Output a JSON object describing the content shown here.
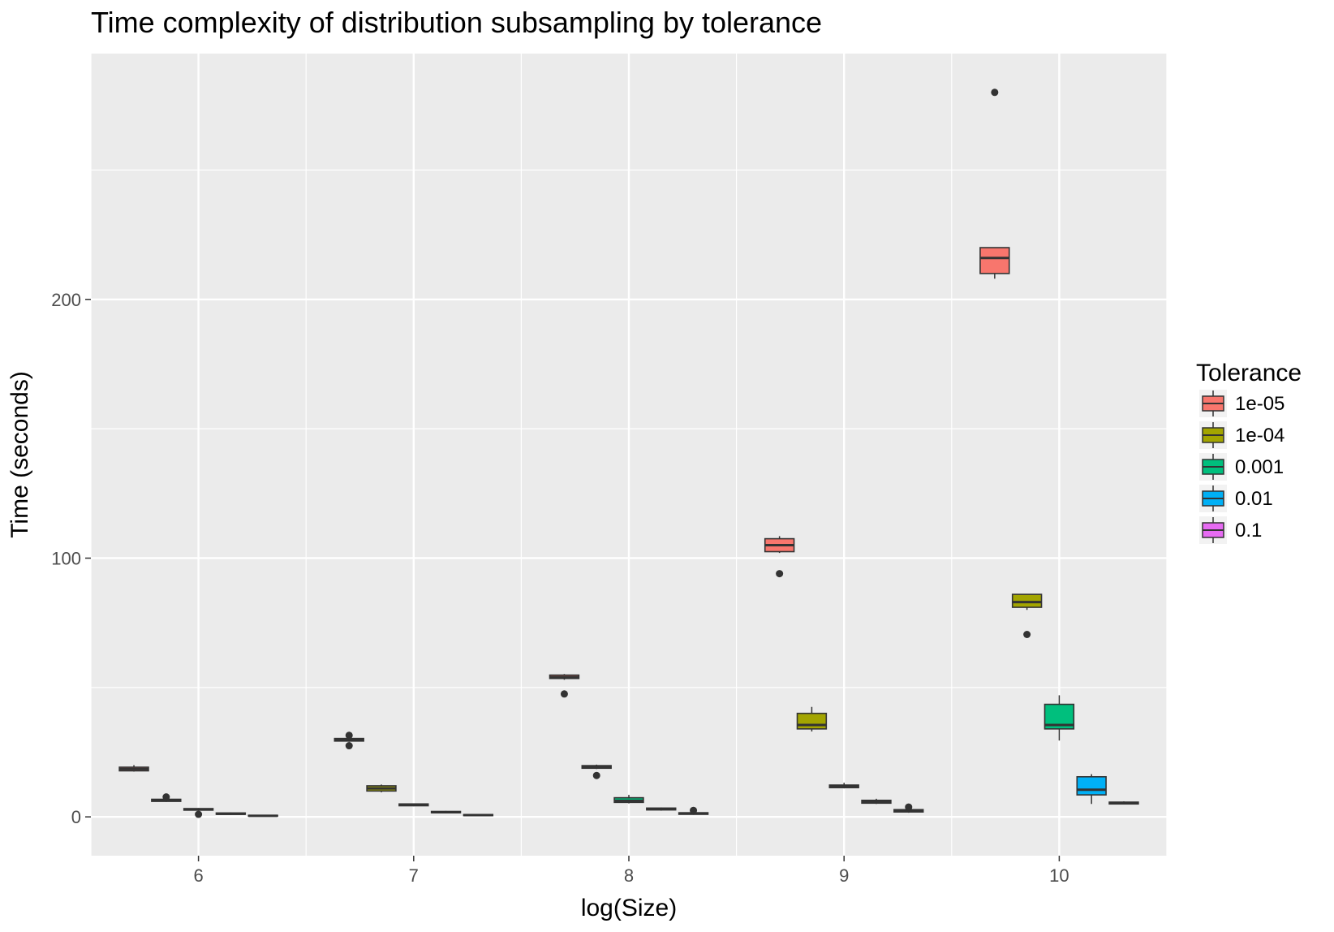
{
  "chart_data": {
    "type": "boxplot",
    "title": "Time complexity of distribution subsampling by tolerance",
    "xlabel": "log(Size)",
    "ylabel": "Time (seconds)",
    "categories": [
      "6",
      "7",
      "8",
      "9",
      "10"
    ],
    "xlim": [
      5.5,
      10.5
    ],
    "ylim": [
      -15,
      295
    ],
    "yticks": [
      0,
      100,
      200
    ],
    "grid": true,
    "legend": {
      "title": "Tolerance",
      "position": "right",
      "entries": [
        {
          "label": "1e-05",
          "color": "#F8766D"
        },
        {
          "label": "1e-04",
          "color": "#A3A500"
        },
        {
          "label": "0.001",
          "color": "#00BF7D"
        },
        {
          "label": "0.01",
          "color": "#00B0F6"
        },
        {
          "label": "0.1",
          "color": "#E76BF3"
        }
      ]
    },
    "series": [
      {
        "name": "1e-05",
        "color": "#F8766D",
        "boxes": [
          {
            "x": "6",
            "min": 17.5,
            "q1": 17.8,
            "median": 18.5,
            "q3": 19.2,
            "max": 20,
            "outliers": []
          },
          {
            "x": "7",
            "min": 29,
            "q1": 29.3,
            "median": 29.8,
            "q3": 30.3,
            "max": 30.6,
            "outliers": [
              31.5,
              27.5
            ]
          },
          {
            "x": "8",
            "min": 53,
            "q1": 53.5,
            "median": 54,
            "q3": 54.8,
            "max": 55.2,
            "outliers": [
              47.5
            ]
          },
          {
            "x": "9",
            "min": 102,
            "q1": 102.5,
            "median": 105,
            "q3": 107.5,
            "max": 108.5,
            "outliers": [
              94
            ]
          },
          {
            "x": "10",
            "min": 208,
            "q1": 210,
            "median": 216,
            "q3": 220,
            "max": 220,
            "outliers": [
              280
            ]
          }
        ]
      },
      {
        "name": "1e-04",
        "color": "#A3A500",
        "boxes": [
          {
            "x": "6",
            "min": 5.8,
            "q1": 6,
            "median": 6.4,
            "q3": 6.8,
            "max": 7.2,
            "outliers": [
              7.7
            ]
          },
          {
            "x": "7",
            "min": 9.5,
            "q1": 10,
            "median": 11,
            "q3": 12,
            "max": 12.5,
            "outliers": []
          },
          {
            "x": "8",
            "min": 18.5,
            "q1": 18.8,
            "median": 19.3,
            "q3": 19.8,
            "max": 20.2,
            "outliers": [
              16
            ]
          },
          {
            "x": "9",
            "min": 33,
            "q1": 34,
            "median": 35.5,
            "q3": 40,
            "max": 42.5,
            "outliers": []
          },
          {
            "x": "10",
            "min": 80,
            "q1": 81,
            "median": 83,
            "q3": 86,
            "max": 86,
            "outliers": [
              70.5
            ]
          }
        ]
      },
      {
        "name": "0.001",
        "color": "#00BF7D",
        "boxes": [
          {
            "x": "6",
            "min": 2.4,
            "q1": 2.6,
            "median": 2.9,
            "q3": 3.2,
            "max": 3.4,
            "outliers": [
              1
            ]
          },
          {
            "x": "7",
            "min": 4.1,
            "q1": 4.3,
            "median": 4.6,
            "q3": 5,
            "max": 5.2,
            "outliers": []
          },
          {
            "x": "8",
            "min": 5.2,
            "q1": 5.6,
            "median": 6.2,
            "q3": 7.4,
            "max": 8.5,
            "outliers": []
          },
          {
            "x": "9",
            "min": 11,
            "q1": 11.3,
            "median": 11.8,
            "q3": 12.3,
            "max": 13.2,
            "outliers": []
          },
          {
            "x": "10",
            "min": 29.5,
            "q1": 34,
            "median": 35.5,
            "q3": 43.5,
            "max": 47,
            "outliers": []
          }
        ]
      },
      {
        "name": "0.01",
        "color": "#00B0F6",
        "boxes": [
          {
            "x": "6",
            "min": 0.8,
            "q1": 1,
            "median": 1.2,
            "q3": 1.5,
            "max": 1.7,
            "outliers": []
          },
          {
            "x": "7",
            "min": 1.4,
            "q1": 1.6,
            "median": 1.8,
            "q3": 2.1,
            "max": 2.3,
            "outliers": []
          },
          {
            "x": "8",
            "min": 2.4,
            "q1": 2.7,
            "median": 3,
            "q3": 3.4,
            "max": 3.6,
            "outliers": []
          },
          {
            "x": "9",
            "min": 5,
            "q1": 5.3,
            "median": 5.8,
            "q3": 6.4,
            "max": 7,
            "outliers": []
          },
          {
            "x": "10",
            "min": 5,
            "q1": 8.5,
            "median": 10.5,
            "q3": 15.5,
            "max": 16.5,
            "outliers": []
          }
        ]
      },
      {
        "name": "0.1",
        "color": "#E76BF3",
        "boxes": [
          {
            "x": "6",
            "min": 0.2,
            "q1": 0.3,
            "median": 0.4,
            "q3": 0.6,
            "max": 0.7,
            "outliers": []
          },
          {
            "x": "7",
            "min": 0.4,
            "q1": 0.5,
            "median": 0.7,
            "q3": 0.9,
            "max": 1,
            "outliers": []
          },
          {
            "x": "8",
            "min": 0.8,
            "q1": 1,
            "median": 1.3,
            "q3": 1.6,
            "max": 1.8,
            "outliers": [
              2.5
            ]
          },
          {
            "x": "9",
            "min": 1.6,
            "q1": 1.9,
            "median": 2.3,
            "q3": 2.8,
            "max": 3.1,
            "outliers": [
              3.8
            ]
          },
          {
            "x": "10",
            "min": 4.8,
            "q1": 5,
            "median": 5.3,
            "q3": 5.7,
            "max": 6,
            "outliers": []
          }
        ]
      }
    ]
  }
}
